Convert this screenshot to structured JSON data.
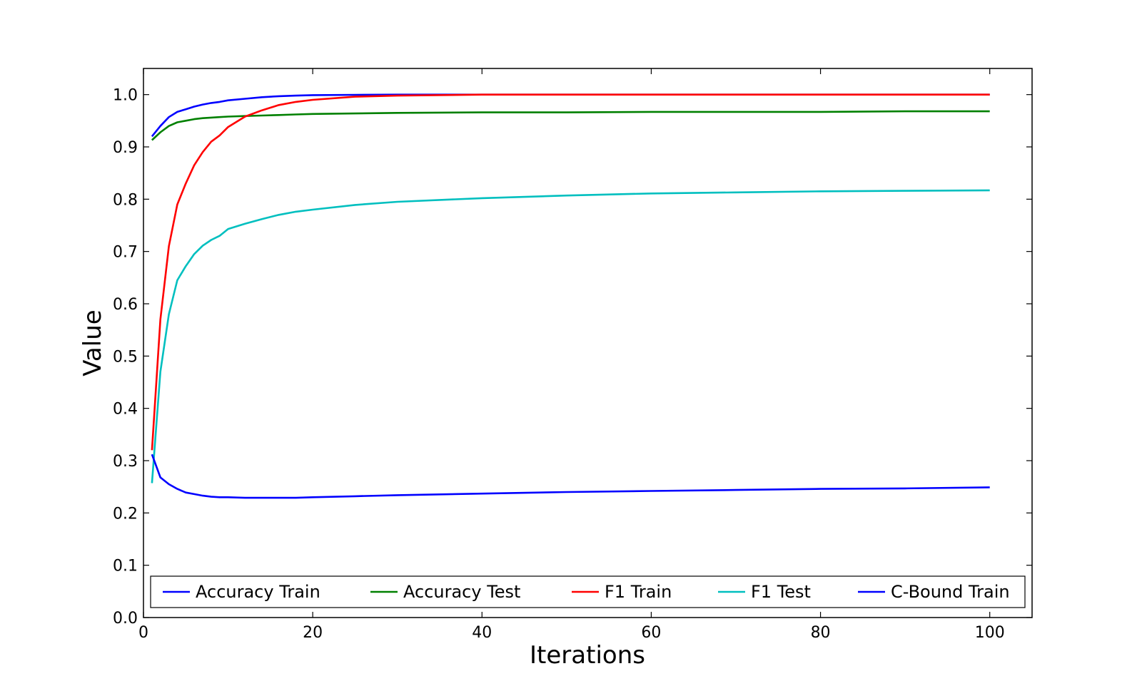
{
  "chart_data": {
    "type": "line",
    "title": "",
    "xlabel": "Iterations",
    "ylabel": "Value",
    "xlim": [
      0,
      105
    ],
    "ylim": [
      0.0,
      1.05
    ],
    "xticks": [
      "0",
      "20",
      "40",
      "60",
      "80",
      "100"
    ],
    "yticks": [
      "0.0",
      "0.1",
      "0.2",
      "0.3",
      "0.4",
      "0.5",
      "0.6",
      "0.7",
      "0.8",
      "0.9",
      "1.0"
    ],
    "grid": false,
    "legend_position": "bottom",
    "x": [
      1,
      2,
      3,
      4,
      5,
      6,
      7,
      8,
      9,
      10,
      12,
      14,
      16,
      18,
      20,
      25,
      30,
      40,
      50,
      60,
      70,
      80,
      90,
      100
    ],
    "series": [
      {
        "name": "Accuracy Train",
        "color": "#0000ff",
        "values": [
          0.92,
          0.94,
          0.957,
          0.967,
          0.972,
          0.977,
          0.981,
          0.984,
          0.986,
          0.989,
          0.992,
          0.995,
          0.997,
          0.998,
          0.999,
          0.9995,
          1.0,
          1.0,
          1.0,
          1.0,
          1.0,
          1.0,
          1.0,
          1.0
        ]
      },
      {
        "name": "Accuracy Test",
        "color": "#008000",
        "values": [
          0.913,
          0.928,
          0.94,
          0.947,
          0.95,
          0.953,
          0.955,
          0.956,
          0.957,
          0.958,
          0.959,
          0.96,
          0.961,
          0.962,
          0.963,
          0.964,
          0.965,
          0.966,
          0.966,
          0.967,
          0.967,
          0.967,
          0.968,
          0.968
        ]
      },
      {
        "name": "F1 Train",
        "color": "#ff0000",
        "values": [
          0.32,
          0.57,
          0.71,
          0.79,
          0.83,
          0.865,
          0.89,
          0.91,
          0.922,
          0.938,
          0.958,
          0.97,
          0.98,
          0.986,
          0.99,
          0.996,
          0.998,
          1.0,
          1.0,
          1.0,
          1.0,
          1.0,
          1.0,
          1.0
        ]
      },
      {
        "name": "F1 Test",
        "color": "#00bfbf",
        "values": [
          0.257,
          0.47,
          0.58,
          0.645,
          0.672,
          0.695,
          0.711,
          0.722,
          0.73,
          0.743,
          0.753,
          0.762,
          0.77,
          0.776,
          0.78,
          0.789,
          0.795,
          0.802,
          0.807,
          0.811,
          0.813,
          0.815,
          0.816,
          0.817
        ]
      },
      {
        "name": "C-Bound Train",
        "color": "#0000ff",
        "values": [
          0.312,
          0.268,
          0.255,
          0.246,
          0.239,
          0.236,
          0.233,
          0.231,
          0.23,
          0.23,
          0.229,
          0.229,
          0.229,
          0.229,
          0.23,
          0.232,
          0.234,
          0.237,
          0.24,
          0.242,
          0.244,
          0.246,
          0.247,
          0.249
        ]
      }
    ]
  }
}
